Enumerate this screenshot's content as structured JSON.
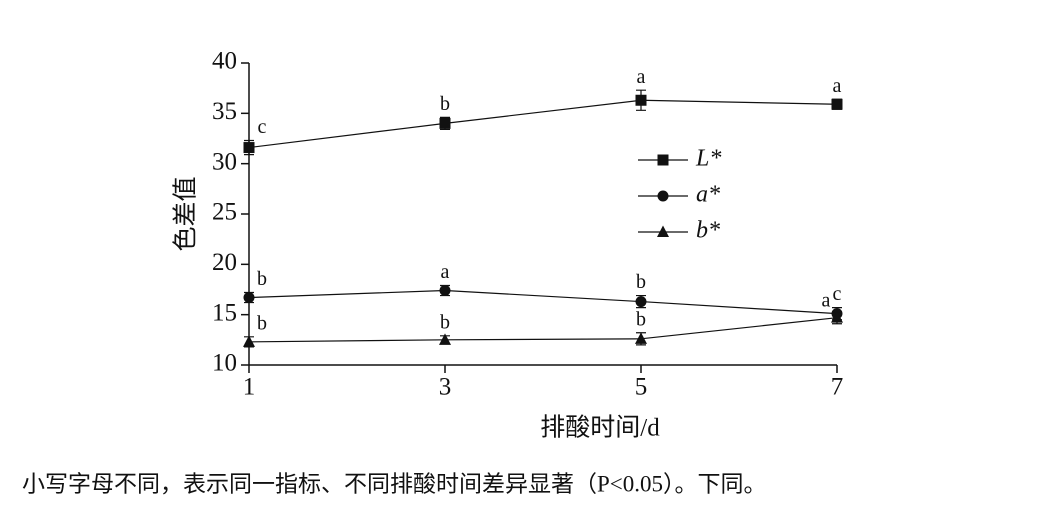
{
  "chart_data": {
    "type": "line",
    "x_label": "排酸时间/d",
    "y_label": "色差值",
    "x": [
      1,
      3,
      5,
      7
    ],
    "xlim": [
      1,
      7
    ],
    "xticks": [
      1,
      3,
      5,
      7
    ],
    "ylim": [
      10,
      40
    ],
    "yticks": [
      10,
      15,
      20,
      25,
      30,
      35,
      40
    ],
    "series": [
      {
        "name": "L*",
        "marker": "square",
        "color": "#111111",
        "values": [
          31.6,
          34.0,
          36.3,
          35.9
        ],
        "errors": [
          0.7,
          0.6,
          1.0,
          0.5
        ],
        "letters": [
          "c",
          "b",
          "a",
          "a"
        ]
      },
      {
        "name": "a*",
        "marker": "circle",
        "color": "#111111",
        "values": [
          16.7,
          17.4,
          16.3,
          15.1
        ],
        "errors": [
          0.5,
          0.5,
          0.6,
          0.6
        ],
        "letters": [
          "b",
          "a",
          "b",
          "c"
        ]
      },
      {
        "name": "b*",
        "marker": "triangle",
        "color": "#111111",
        "values": [
          12.3,
          12.5,
          12.6,
          14.7
        ],
        "errors": [
          0.5,
          0.4,
          0.6,
          0.6
        ],
        "letters": [
          "b",
          "b",
          "b",
          "a"
        ]
      }
    ],
    "note": "小写字母不同，表示同一指标、不同排酸时间差异显著（P<0.05）。下同。"
  }
}
